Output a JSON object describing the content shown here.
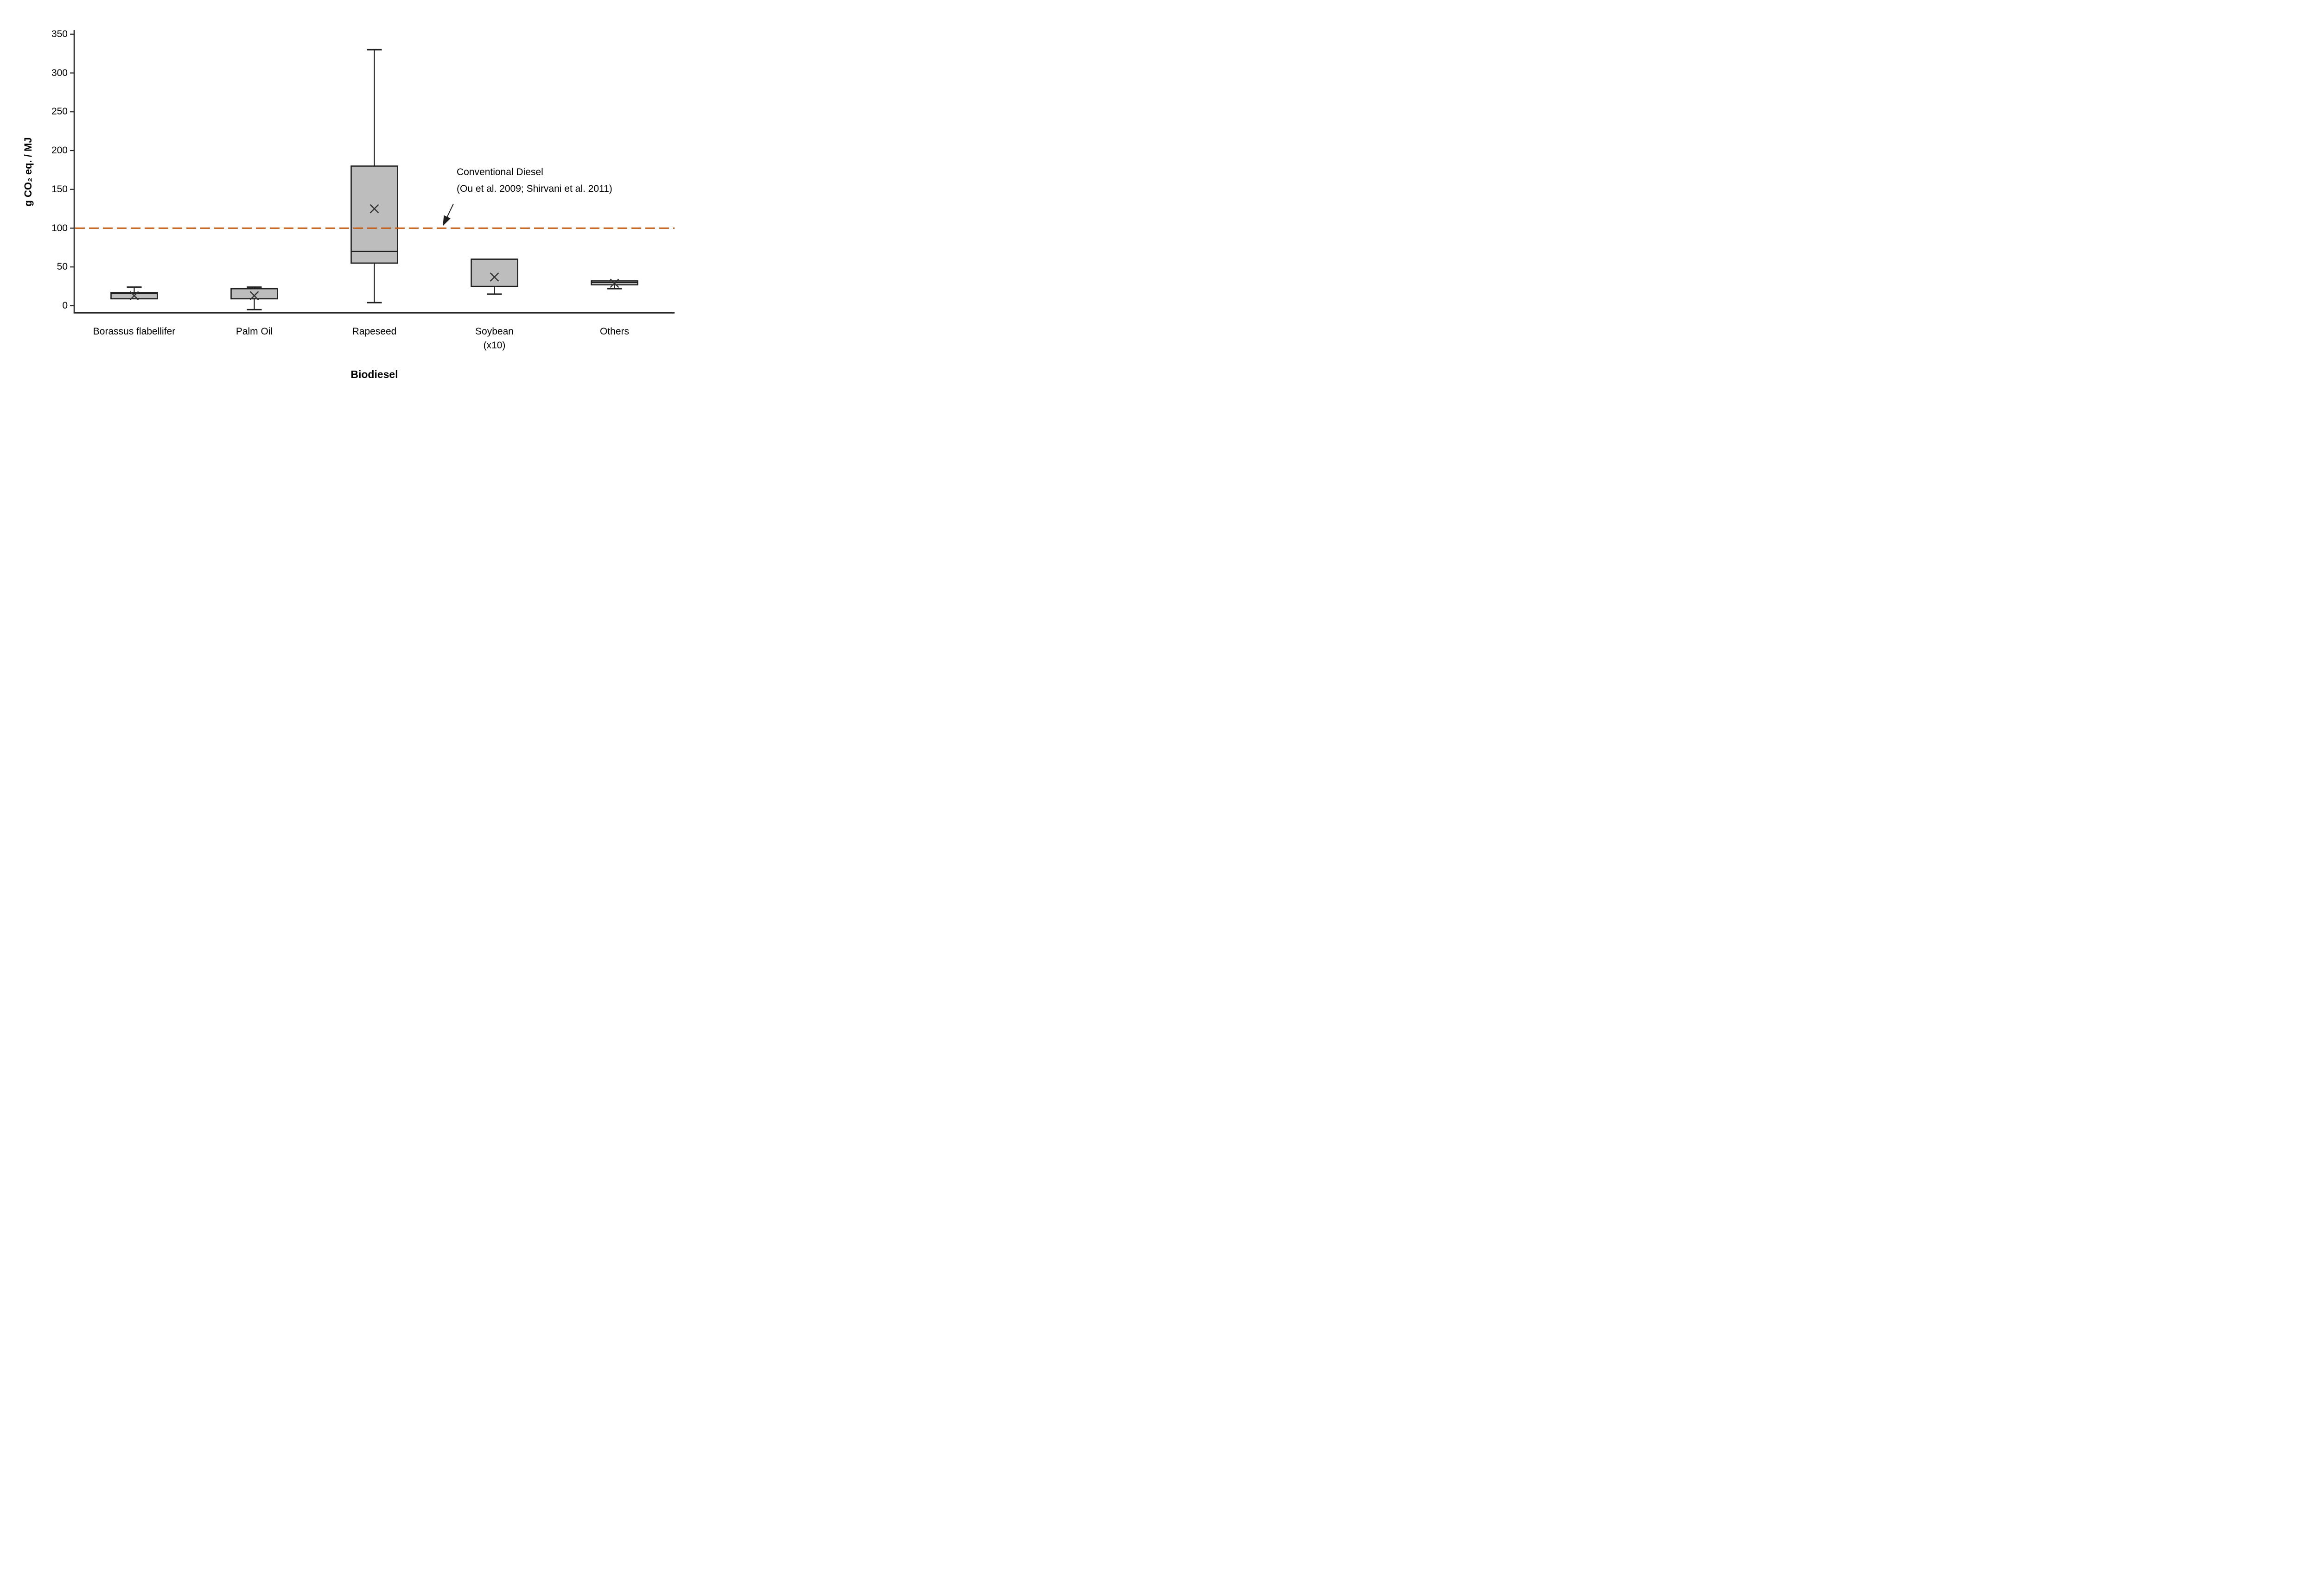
{
  "chart_data": {
    "type": "box",
    "title": "",
    "xlabel": "Biodiesel",
    "ylabel": "g CO₂ eq. / MJ",
    "y_axis": {
      "title": "g CO₂ eq. / MJ",
      "ticks": [
        "350",
        "300",
        "250",
        "200",
        "150",
        "100",
        "50",
        "0"
      ],
      "tick_values": [
        350,
        300,
        250,
        200,
        150,
        100,
        50,
        0
      ],
      "range_min": -10,
      "range_max": 355,
      "grid": false
    },
    "x_axis": {
      "title": "Biodiesel"
    },
    "categories": [
      {
        "label": "Borassus flabellifer",
        "sublabel": ""
      },
      {
        "label": "Palm Oil",
        "sublabel": ""
      },
      {
        "label": "Rapeseed",
        "sublabel": ""
      },
      {
        "label": "Soybean",
        "sublabel": "(x10)"
      },
      {
        "label": "Others",
        "sublabel": ""
      }
    ],
    "boxes": [
      {
        "name": "Borassus flabellifer",
        "whisker_low": null,
        "q1": 9,
        "median": 16,
        "q3": 17,
        "whisker_high": 24,
        "mean": 13
      },
      {
        "name": "Palm Oil",
        "whisker_low": -5,
        "q1": 9,
        "median": 22,
        "q3": 22,
        "whisker_high": 24,
        "mean": 13
      },
      {
        "name": "Rapeseed",
        "whisker_low": 4,
        "q1": 55,
        "median": 70,
        "q3": 180,
        "whisker_high": 330,
        "mean": 125
      },
      {
        "name": "Soybean (x10)",
        "whisker_low": 15,
        "q1": 25,
        "median": 60,
        "q3": 60,
        "whisker_high": null,
        "mean": 37
      },
      {
        "name": "Others",
        "whisker_low": 22,
        "q1": 27,
        "median": 30,
        "q3": 32,
        "whisker_high": null,
        "mean": 29
      }
    ],
    "reference_line": {
      "value": 100,
      "style": "dashed",
      "color": "#C55A11",
      "label_line1": "Conventional Diesel",
      "label_line2": "(Ou et al. 2009; Shirvani et al. 2011)"
    },
    "colors": {
      "box_fill": "#BDBDBD",
      "box_border": "#1F1F1F",
      "axis": "#262626",
      "mean_marker": "#333333",
      "text": "#000000"
    },
    "legend": null
  }
}
